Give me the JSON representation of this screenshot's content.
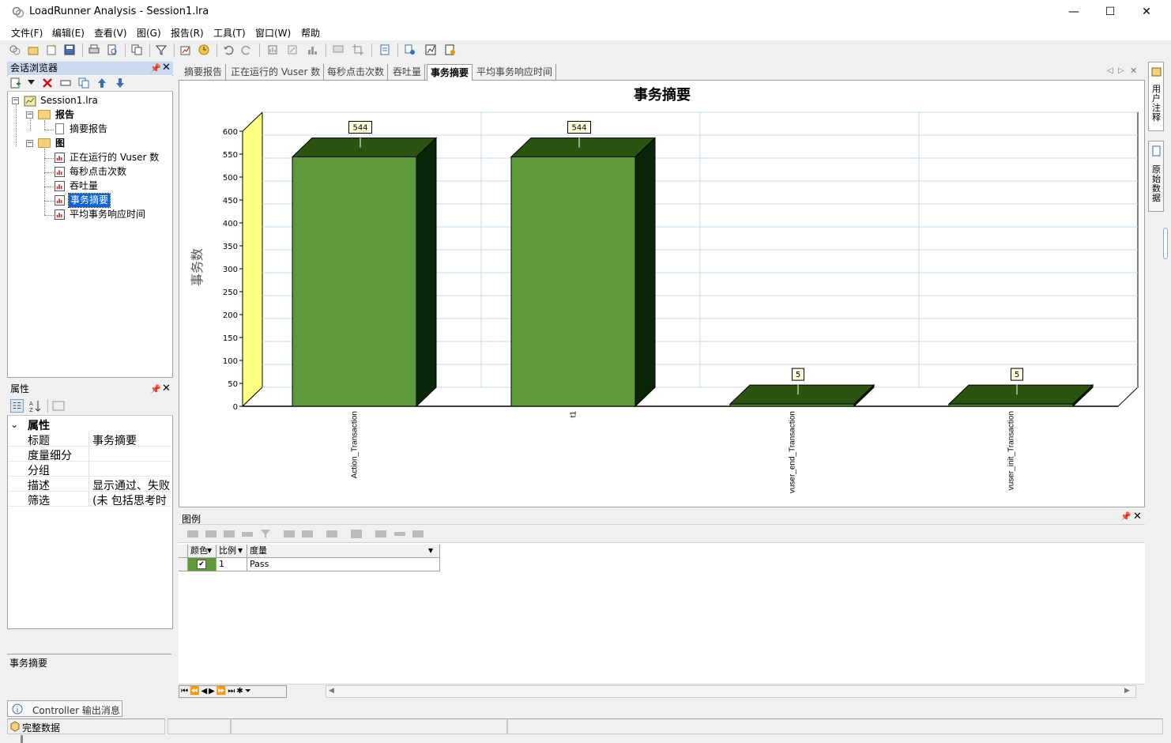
{
  "window": {
    "title": "LoadRunner Analysis - Session1.lra",
    "minimize": "—",
    "maximize": "☐",
    "close": "✕"
  },
  "menu": [
    "文件(F)",
    "编辑(E)",
    "查看(V)",
    "图(G)",
    "报告(R)",
    "工具(T)",
    "窗口(W)",
    "帮助"
  ],
  "session_browser": {
    "title": "会话浏览器",
    "tree": {
      "root": "Session1.lra",
      "reports_folder": "报告",
      "summary_report": "摘要报告",
      "graphs_folder": "图",
      "graphs": [
        "正在运行的 Vuser 数",
        "每秒点击次数",
        "吞吐量",
        "事务摘要",
        "平均事务响应时间"
      ],
      "selected": "事务摘要"
    }
  },
  "properties": {
    "title": "属性",
    "category": "属性",
    "rows": [
      {
        "key": "标题",
        "value": "事务摘要"
      },
      {
        "key": "度量细分",
        "value": ""
      },
      {
        "key": "分组",
        "value": ""
      },
      {
        "key": "描述",
        "value": "显示通过、失败"
      },
      {
        "key": "筛选",
        "value": "(未 包括思考时"
      }
    ],
    "description_box": "事务摘要"
  },
  "tabs": [
    "摘要报告",
    "正在运行的 Vuser 数",
    "每秒点击次数",
    "吞吐量",
    "事务摘要",
    "平均事务响应时间"
  ],
  "active_tab": "事务摘要",
  "chart_data": {
    "type": "bar",
    "title": "事务摘要",
    "ylabel": "事务数",
    "xlabel": "",
    "categories": [
      "Action_Transaction",
      "t1",
      "vuser_end_Transaction",
      "vuser_init_Transaction"
    ],
    "values": [
      544,
      544,
      5,
      5
    ],
    "data_labels": [
      "544",
      "544",
      "5",
      "5"
    ],
    "ylim": [
      0,
      600
    ],
    "yticks": [
      0,
      50,
      100,
      150,
      200,
      250,
      300,
      350,
      400,
      450,
      500,
      550,
      600
    ],
    "grid": true,
    "colors": {
      "bar_front": "#5e9a3a",
      "bar_side": "#0a2608",
      "bar_top": "#2a5410",
      "wall": "#ffff80"
    }
  },
  "right_sidebar": {
    "user_notes": "用户注释",
    "raw_data": "原始数据"
  },
  "legend": {
    "title": "图例",
    "headers": [
      "颜色",
      "比例",
      "度量"
    ],
    "rows": [
      {
        "check": "✔",
        "scale": "1",
        "measure": "Pass",
        "color": "#5e9a3a"
      }
    ]
  },
  "bottom_tab": "Controller 输出消息",
  "status": {
    "text": "完整数据"
  }
}
